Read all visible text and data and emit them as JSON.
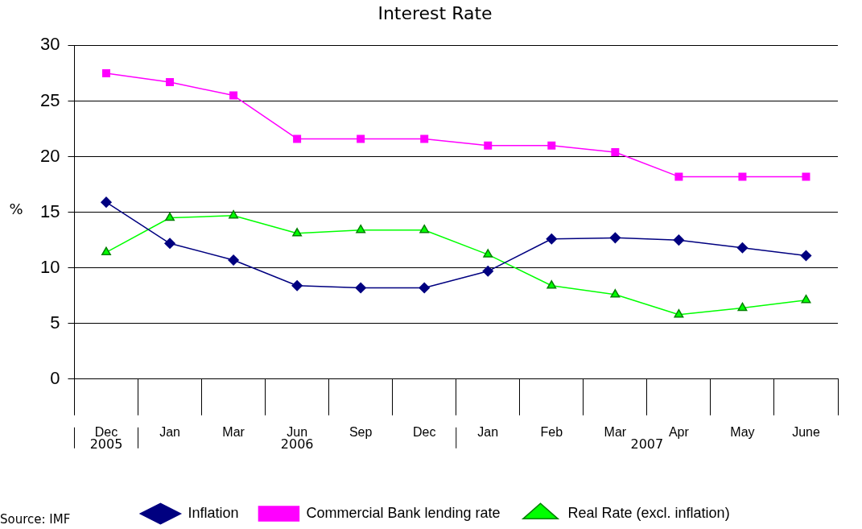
{
  "chart_data": {
    "type": "line",
    "title": "Interest Rate",
    "ylabel": "%",
    "categories": [
      "Dec",
      "Jan",
      "Mar",
      "Jun",
      "Sep",
      "Dec",
      "Jan",
      "Feb",
      "Mar",
      "Apr",
      "May",
      "June"
    ],
    "series": [
      {
        "name": "Inflation",
        "color": "#000080",
        "marker": "diamond",
        "values": [
          15.9,
          12.2,
          10.7,
          8.4,
          8.2,
          8.2,
          9.7,
          12.6,
          12.7,
          12.5,
          11.8,
          11.1
        ]
      },
      {
        "name": "Commercial Bank lending rate",
        "color": "#ff00ff",
        "marker": "square",
        "values": [
          27.5,
          26.7,
          25.5,
          21.6,
          21.6,
          21.6,
          21.0,
          21.0,
          20.4,
          18.2,
          18.2,
          18.2
        ]
      },
      {
        "name": "Real Rate (excl. inflation)",
        "color": "#00ff00",
        "marker": "triangle",
        "values": [
          11.4,
          14.5,
          14.7,
          13.1,
          13.4,
          13.4,
          11.2,
          8.4,
          7.6,
          5.8,
          6.4,
          7.1
        ]
      }
    ],
    "ylim": [
      0,
      30
    ],
    "yticks": [
      0,
      5,
      10,
      15,
      20,
      25,
      30
    ],
    "grid": "y",
    "legend": "bottom",
    "annotations": [
      "2005",
      "2006",
      "2007",
      "Source: IMF"
    ]
  }
}
